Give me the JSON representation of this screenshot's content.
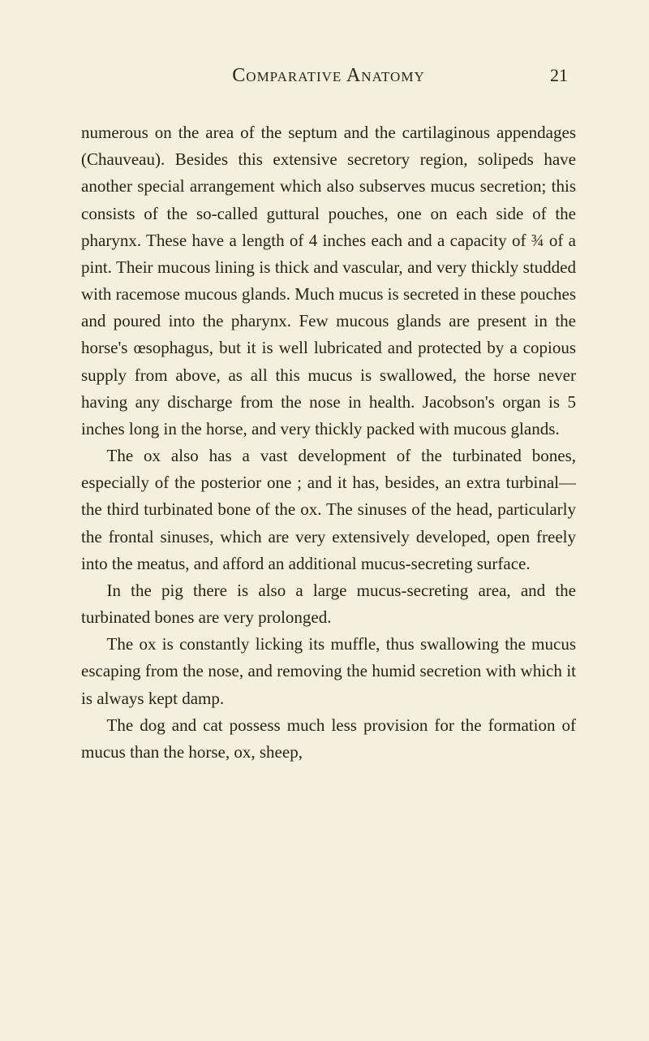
{
  "header": {
    "title": "Comparative Anatomy",
    "page_number": "21"
  },
  "paragraphs": [
    "numerous on the area of the septum and the cartilaginous appendages (Chauveau). Besides this extensive secretory region, solipeds have another special arrangement which also subserves mucus secretion; this consists of the so-called guttural pouches, one on each side of the pharynx. These have a length of 4 inches each and a capacity of ¾ of a pint. Their mucous lining is thick and vascular, and very thickly studded with racemose mucous glands. Much mucus is secreted in these pouches and poured into the pharynx. Few mucous glands are present in the horse's œsophagus, but it is well lubricated and protected by a copious supply from above, as all this mucus is swallowed, the horse never having any discharge from the nose in health. Jacobson's organ is 5 inches long in the horse, and very thickly packed with mucous glands.",
    "The ox also has a vast development of the turbinated bones, especially of the posterior one ; and it has, besides, an extra turbinal—the third turbinated bone of the ox. The sinuses of the head, particularly the frontal sinuses, which are very extensively developed, open freely into the meatus, and afford an additional mucus-secreting surface.",
    "In the pig there is also a large mucus-secreting area, and the turbinated bones are very prolonged.",
    "The ox is constantly licking its muffle, thus swallowing the mucus escaping from the nose, and removing the humid secretion with which it is always kept damp.",
    "The dog and cat possess much less provision for the formation of mucus than the horse, ox, sheep,"
  ],
  "styles": {
    "background_color": "#f5f0de",
    "text_color": "#2a2218",
    "body_fontsize": 21,
    "title_fontsize": 24,
    "line_height": 1.58
  }
}
